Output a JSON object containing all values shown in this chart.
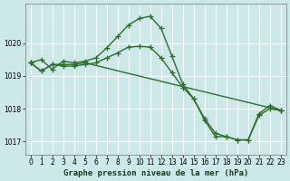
{
  "title": "Graphe pression niveau de la mer (hPa)",
  "background_color": "#cce8e8",
  "grid_color": "#ffffff",
  "line_color": "#2d6e2d",
  "xlim": [
    -0.5,
    23.5
  ],
  "ylim": [
    1016.6,
    1021.2
  ],
  "yticks": [
    1017,
    1018,
    1019,
    1020
  ],
  "xticks": [
    0,
    1,
    2,
    3,
    4,
    5,
    6,
    7,
    8,
    9,
    10,
    11,
    12,
    13,
    14,
    15,
    16,
    17,
    18,
    19,
    20,
    21,
    22,
    23
  ],
  "series1_x": [
    0,
    1,
    2,
    3,
    4,
    5,
    6,
    7,
    8,
    9,
    10,
    11,
    12,
    13,
    14,
    15,
    16,
    17,
    18,
    19,
    20,
    21,
    22,
    23
  ],
  "series1_y": [
    1019.4,
    1019.5,
    1019.2,
    1019.45,
    1019.4,
    1019.45,
    1019.55,
    1019.85,
    1020.2,
    1020.55,
    1020.75,
    1020.82,
    1020.45,
    1019.6,
    1018.75,
    1018.3,
    1017.65,
    1017.15,
    1017.15,
    1017.05,
    1017.05,
    1017.85,
    1018.1,
    1017.95
  ],
  "series2_x": [
    0,
    1,
    2,
    3,
    4,
    5,
    23
  ],
  "series2_y": [
    1019.4,
    1019.15,
    1019.35,
    1019.35,
    1019.35,
    1019.4,
    1017.95
  ],
  "series3_x": [
    0,
    1,
    2,
    3,
    4,
    5,
    6,
    7,
    8,
    9,
    10,
    11,
    12,
    13,
    14,
    15,
    16,
    17,
    18,
    19,
    20,
    21,
    22,
    23
  ],
  "series3_y": [
    1019.4,
    1019.15,
    1019.35,
    1019.3,
    1019.3,
    1019.35,
    1019.4,
    1019.55,
    1019.7,
    1019.88,
    1019.9,
    1019.88,
    1019.55,
    1019.1,
    1018.65,
    1018.3,
    1017.7,
    1017.25,
    1017.15,
    1017.05,
    1017.05,
    1017.8,
    1018.0,
    1017.95
  ],
  "marker": "+",
  "markersize": 4,
  "linewidth": 1.0,
  "tick_fontsize": 5.5,
  "xlabel_fontsize": 6.5
}
